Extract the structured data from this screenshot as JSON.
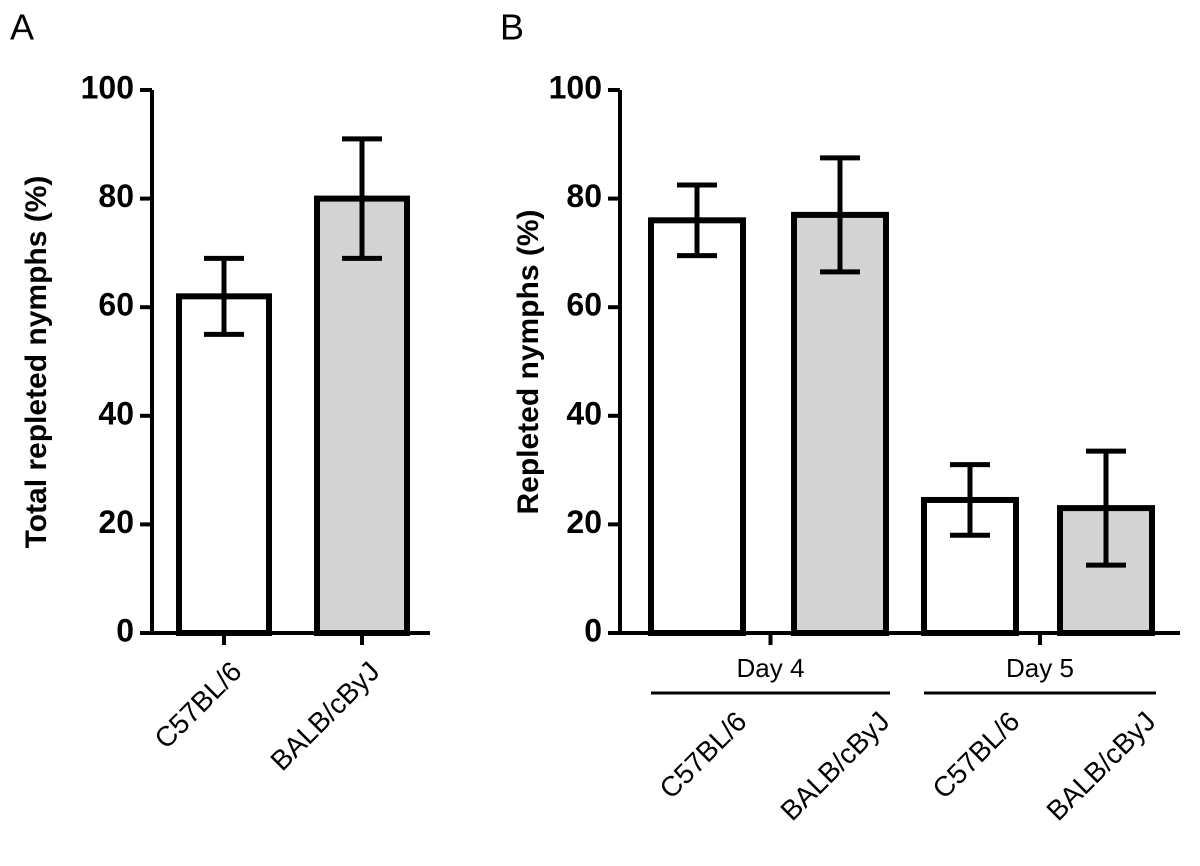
{
  "chart_data": [
    {
      "type": "bar",
      "panel_label": "A",
      "y_label": "Total repleted nymphs (%)",
      "categories": [
        "C57BL/6",
        "BALB/cByJ"
      ],
      "values": [
        62,
        80
      ],
      "errors": [
        7,
        11
      ],
      "colors": [
        "#ffffff",
        "#d3d3d3"
      ],
      "ylim": [
        0,
        100
      ],
      "yticks": [
        0,
        20,
        40,
        60,
        80,
        100
      ]
    },
    {
      "type": "bar",
      "panel_label": "B",
      "y_label": "Repleted nymphs (%)",
      "groups": [
        "Day 4",
        "Day 5"
      ],
      "categories": [
        "C57BL/6",
        "BALB/cByJ",
        "C57BL/6",
        "BALB/cByJ"
      ],
      "values": [
        76,
        77,
        24.5,
        23
      ],
      "errors": [
        6.5,
        10.5,
        6.5,
        10.5
      ],
      "colors": [
        "#ffffff",
        "#d3d3d3",
        "#ffffff",
        "#d3d3d3"
      ],
      "ylim": [
        0,
        100
      ],
      "yticks": [
        0,
        20,
        40,
        60,
        80,
        100
      ]
    }
  ]
}
